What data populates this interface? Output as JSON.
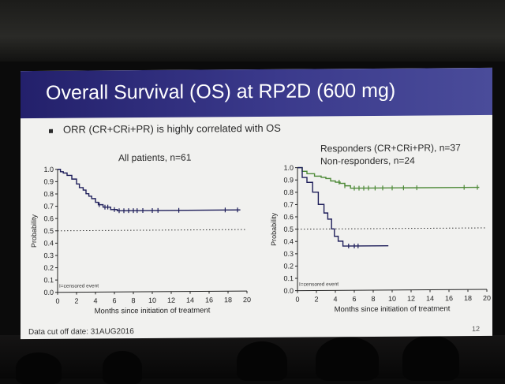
{
  "slide": {
    "title": "Overall Survival (OS) at RP2D (600 mg)",
    "bullet": "ORR (CR+CRi+PR) is highly correlated with OS",
    "footer": "Data cut off date: 31AUG2016",
    "page_number": "12"
  },
  "chart_data": [
    {
      "type": "line",
      "title": "All patients, n=61",
      "xlabel": "Months since initiation of treatment",
      "ylabel": "Probability",
      "xlim": [
        0,
        20
      ],
      "ylim": [
        0,
        1
      ],
      "x_ticks": [
        "0",
        "2",
        "4",
        "6",
        "8",
        "10",
        "12",
        "14",
        "16",
        "18",
        "20"
      ],
      "y_ticks": [
        "0.0",
        "0.1",
        "0.2",
        "0.3",
        "0.4",
        "0.5",
        "0.6",
        "0.7",
        "0.8",
        "0.9",
        "1.0"
      ],
      "reference_line_y": 0.5,
      "annotation": "I=censored event",
      "series": [
        {
          "color": "#1e1e5a",
          "x": [
            0,
            0.3,
            0.6,
            1.0,
            1.5,
            2.0,
            2.3,
            2.7,
            3.0,
            3.3,
            3.6,
            4.0,
            4.3,
            4.8,
            5.6,
            6.3,
            19.3
          ],
          "y": [
            1.0,
            0.98,
            0.97,
            0.95,
            0.92,
            0.88,
            0.85,
            0.83,
            0.8,
            0.78,
            0.76,
            0.73,
            0.71,
            0.69,
            0.67,
            0.66,
            0.66
          ],
          "censored_x": [
            4.4,
            5.0,
            5.3,
            6.0,
            6.5,
            7.0,
            7.5,
            8.0,
            8.4,
            9.0,
            10.0,
            10.6,
            12.8,
            17.7,
            19.0
          ]
        }
      ]
    },
    {
      "type": "line",
      "title": "",
      "xlabel": "Months since initiation of treatment",
      "ylabel": "Probability",
      "xlim": [
        0,
        20
      ],
      "ylim": [
        0,
        1
      ],
      "x_ticks": [
        "0",
        "2",
        "4",
        "6",
        "8",
        "10",
        "12",
        "14",
        "16",
        "18",
        "20"
      ],
      "y_ticks": [
        "0.0",
        "0.1",
        "0.2",
        "0.3",
        "0.4",
        "0.5",
        "0.6",
        "0.7",
        "0.8",
        "0.9",
        "1.0"
      ],
      "reference_line_y": 0.5,
      "annotation": "I=censored event",
      "legend_lines": [
        "Responders (CR+CRi+PR), n=37",
        "Non-responders, n=24"
      ],
      "series": [
        {
          "color": "#4e8a38",
          "x": [
            0,
            0.5,
            1.0,
            1.8,
            2.5,
            3.0,
            3.5,
            4.0,
            4.5,
            5.0,
            5.6,
            19.2
          ],
          "y": [
            1.0,
            0.97,
            0.95,
            0.93,
            0.92,
            0.91,
            0.89,
            0.88,
            0.87,
            0.85,
            0.83,
            0.83
          ],
          "censored_x": [
            4.4,
            5.0,
            6.0,
            6.5,
            7.0,
            7.5,
            8.2,
            9.0,
            10.0,
            11.2,
            12.6,
            17.6,
            19.0
          ]
        },
        {
          "color": "#1e1e5a",
          "x": [
            0,
            0.5,
            1.0,
            1.6,
            2.2,
            2.8,
            3.2,
            3.6,
            3.9,
            4.3,
            4.8,
            9.6
          ],
          "y": [
            1.0,
            0.92,
            0.88,
            0.8,
            0.7,
            0.63,
            0.58,
            0.5,
            0.44,
            0.4,
            0.36,
            0.36
          ],
          "censored_x": [
            5.4,
            6.0,
            6.4
          ]
        }
      ]
    }
  ]
}
